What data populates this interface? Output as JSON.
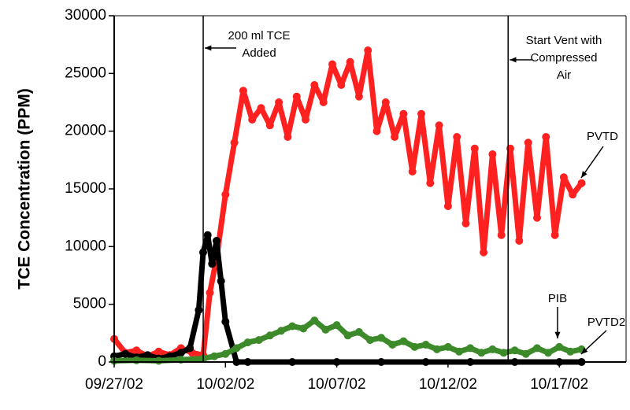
{
  "chart_data": {
    "type": "scatter",
    "title": "",
    "xlabel": "",
    "ylabel": "TCE Concentration (PPM)",
    "ylim": [
      0,
      30000
    ],
    "xlim": [
      "2002-09-27",
      "2002-10-20"
    ],
    "y_ticks": [
      0,
      5000,
      10000,
      15000,
      20000,
      25000,
      30000
    ],
    "y_tick_labels": [
      "0",
      "5000",
      "10000",
      "15000",
      "20000",
      "25000",
      "30000"
    ],
    "x_ticks": [
      "2002-09-27",
      "2002-10-02",
      "2002-10-07",
      "2002-10-12",
      "2002-10-17"
    ],
    "x_tick_labels": [
      "09/27/02",
      "10/02/02",
      "10/07/02",
      "10/12/02",
      "10/17/02"
    ],
    "grid": false,
    "legend": "none",
    "event_lines": [
      {
        "x": "2002-10-01",
        "label_lines": [
          "200 ml TCE",
          "Added"
        ]
      },
      {
        "x": "2002-10-14.7",
        "label_lines": [
          "Start Vent with",
          "Compressed",
          "Air"
        ]
      }
    ],
    "series": [
      {
        "name": "PVTD",
        "color": "#ff2020",
        "x": [
          "2002-09-27",
          "2002-09-27.5",
          "2002-09-28",
          "2002-09-28.5",
          "2002-09-29",
          "2002-09-29.5",
          "2002-09-30",
          "2002-09-30.5",
          "2002-10-01",
          "2002-10-01.3",
          "2002-10-01.6",
          "2002-10-02",
          "2002-10-02.4",
          "2002-10-02.8",
          "2002-10-03.2",
          "2002-10-03.6",
          "2002-10-04",
          "2002-10-04.4",
          "2002-10-04.8",
          "2002-10-05.2",
          "2002-10-05.6",
          "2002-10-06",
          "2002-10-06.4",
          "2002-10-06.8",
          "2002-10-07.2",
          "2002-10-07.6",
          "2002-10-08",
          "2002-10-08.4",
          "2002-10-08.8",
          "2002-10-09.2",
          "2002-10-09.6",
          "2002-10-10",
          "2002-10-10.4",
          "2002-10-10.8",
          "2002-10-11.2",
          "2002-10-11.6",
          "2002-10-12",
          "2002-10-12.4",
          "2002-10-12.8",
          "2002-10-13.2",
          "2002-10-13.6",
          "2002-10-14",
          "2002-10-14.4",
          "2002-10-14.8",
          "2002-10-15.2",
          "2002-10-15.6",
          "2002-10-16",
          "2002-10-16.4",
          "2002-10-16.8",
          "2002-10-17.2",
          "2002-10-17.6",
          "2002-10-18"
        ],
        "y": [
          2000,
          800,
          1000,
          500,
          900,
          600,
          1200,
          800,
          600,
          6000,
          9000,
          14500,
          19000,
          23500,
          21000,
          22000,
          20500,
          22500,
          19500,
          23000,
          21000,
          24000,
          22500,
          25800,
          24000,
          26000,
          23000,
          27000,
          20000,
          22500,
          19500,
          21500,
          16500,
          21500,
          15500,
          20500,
          13500,
          19500,
          12000,
          18500,
          9500,
          18000,
          11000,
          18500,
          10500,
          19000,
          12500,
          19500,
          11000,
          16000,
          14500,
          15500
        ]
      },
      {
        "name": "",
        "color": "#000000",
        "x": [
          "2002-09-27",
          "2002-09-27.5",
          "2002-09-28",
          "2002-09-28.5",
          "2002-09-29",
          "2002-09-29.5",
          "2002-09-30",
          "2002-09-30.4",
          "2002-09-30.8",
          "2002-10-01",
          "2002-10-01.2",
          "2002-10-01.4",
          "2002-10-01.6",
          "2002-10-01.8",
          "2002-10-02",
          "2002-10-02.5",
          "2002-10-03",
          "2002-10-05",
          "2002-10-07",
          "2002-10-09",
          "2002-10-11",
          "2002-10-13",
          "2002-10-15",
          "2002-10-17",
          "2002-10-18"
        ],
        "y": [
          500,
          700,
          400,
          600,
          300,
          500,
          800,
          1200,
          4500,
          9500,
          11000,
          8500,
          10500,
          7000,
          3500,
          0,
          0,
          0,
          0,
          0,
          0,
          0,
          0,
          0,
          0
        ]
      },
      {
        "name": "PIB",
        "color": "#3d8a2a",
        "x": [
          "2002-09-27",
          "2002-09-28",
          "2002-09-29",
          "2002-09-30",
          "2002-10-01",
          "2002-10-01.5",
          "2002-10-02",
          "2002-10-02.5",
          "2002-10-03",
          "2002-10-03.5",
          "2002-10-04",
          "2002-10-04.5",
          "2002-10-05",
          "2002-10-05.5",
          "2002-10-06",
          "2002-10-06.5",
          "2002-10-07",
          "2002-10-07.5",
          "2002-10-08",
          "2002-10-08.5",
          "2002-10-09",
          "2002-10-09.5",
          "2002-10-10",
          "2002-10-10.5",
          "2002-10-11",
          "2002-10-11.5",
          "2002-10-12",
          "2002-10-12.5",
          "2002-10-13",
          "2002-10-13.5",
          "2002-10-14",
          "2002-10-14.5",
          "2002-10-15",
          "2002-10-15.5",
          "2002-10-16",
          "2002-10-16.5",
          "2002-10-17",
          "2002-10-17.5",
          "2002-10-18"
        ],
        "y": [
          100,
          150,
          100,
          200,
          300,
          500,
          700,
          1200,
          1700,
          1900,
          2300,
          2700,
          3100,
          2900,
          3600,
          2800,
          3200,
          2300,
          2600,
          1900,
          2100,
          1500,
          1800,
          1300,
          1500,
          1100,
          1300,
          900,
          1200,
          800,
          1100,
          800,
          1000,
          700,
          1200,
          800,
          1300,
          900,
          1100
        ]
      }
    ],
    "annotations": [
      {
        "text": "PVTD",
        "target_series": "PVTD"
      },
      {
        "text": "PIB",
        "target_series": "PIB"
      },
      {
        "text": "PVTD2",
        "target_series": "PIB"
      }
    ]
  }
}
